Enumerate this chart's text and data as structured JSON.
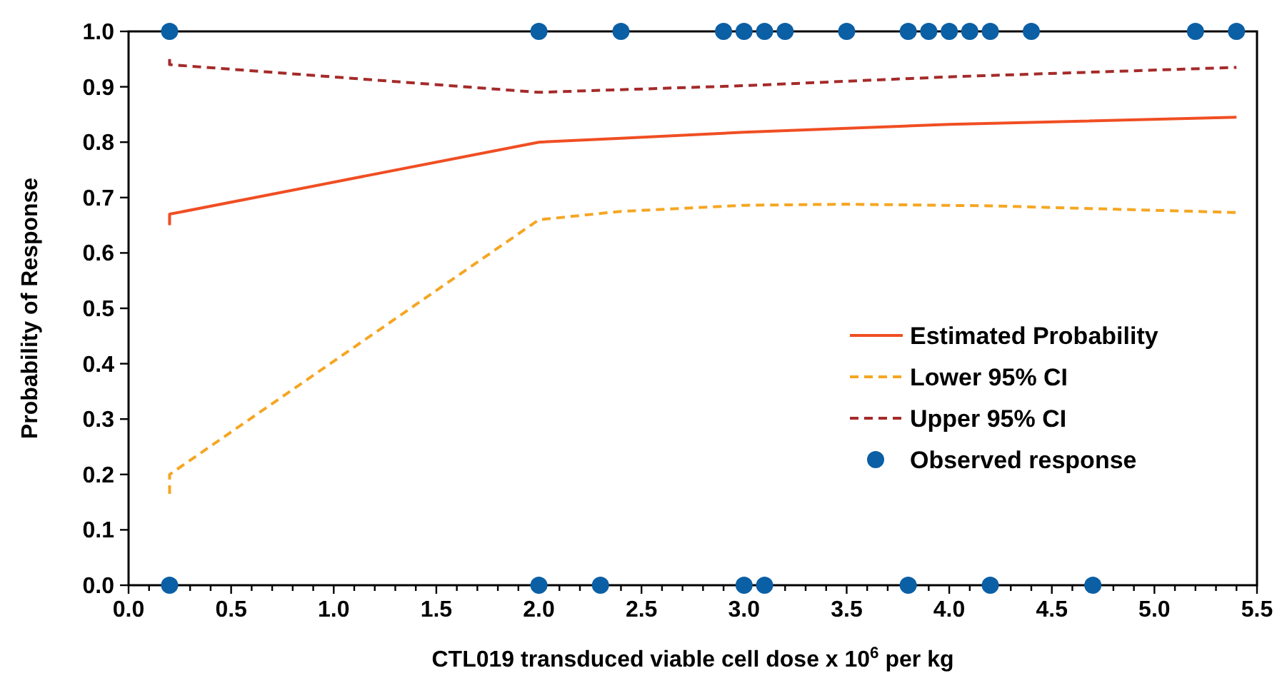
{
  "chart_data": {
    "type": "line",
    "xlabel": "CTL019 transduced viable cell dose x 10$^{6}$ per kg",
    "ylabel": "Probability of Response",
    "xlim": [
      0,
      5.5
    ],
    "ylim": [
      0,
      1
    ],
    "xticks": [
      {
        "value": 0,
        "label": "0.0"
      },
      {
        "value": 0.1,
        "label": null
      },
      {
        "value": 0.2,
        "label": null
      },
      {
        "value": 0.3,
        "label": null
      },
      {
        "value": 0.4,
        "label": null
      },
      {
        "value": 0.5,
        "label": "0.5"
      },
      {
        "value": 0.6,
        "label": null
      },
      {
        "value": 0.7,
        "label": null
      },
      {
        "value": 0.8,
        "label": null
      },
      {
        "value": 0.9,
        "label": null
      },
      {
        "value": 1,
        "label": "1.0"
      },
      {
        "value": 1.1,
        "label": null
      },
      {
        "value": 1.2,
        "label": null
      },
      {
        "value": 1.3,
        "label": null
      },
      {
        "value": 1.4,
        "label": null
      },
      1.5,
      {
        "value": 1.6,
        "label": null
      },
      {
        "value": 1.7,
        "label": null
      },
      {
        "value": 1.8,
        "label": null
      },
      {
        "value": 1.9,
        "label": null
      },
      {
        "value": 2,
        "label": "2.0"
      },
      {
        "value": 2.1,
        "label": null
      },
      {
        "value": 2.2,
        "label": null
      },
      {
        "value": 2.3,
        "label": null
      },
      {
        "value": 2.4,
        "label": null
      },
      2.5,
      {
        "value": 2.6,
        "label": null
      },
      {
        "value": 2.7,
        "label": null
      },
      {
        "value": 2.8,
        "label": null
      },
      {
        "value": 2.9,
        "label": null
      },
      {
        "value": 3,
        "label": "3.0"
      },
      {
        "value": 3.1,
        "label": null
      },
      {
        "value": 3.2,
        "label": null
      },
      {
        "value": 3.3,
        "label": null
      },
      {
        "value": 3.4,
        "label": null
      },
      3.5,
      {
        "value": 3.6,
        "label": null
      },
      {
        "value": 3.7,
        "label": null
      },
      {
        "value": 3.8,
        "label": null
      },
      {
        "value": 3.9,
        "label": null
      },
      {
        "value": 4,
        "label": "4.0"
      },
      {
        "value": 4.1,
        "label": null
      },
      {
        "value": 4.2,
        "label": null
      },
      {
        "value": 4.3,
        "label": null
      },
      {
        "value": 4.4,
        "label": null
      },
      4.5,
      {
        "value": 4.6,
        "label": null
      },
      {
        "value": 4.7,
        "label": null
      },
      {
        "value": 4.8,
        "label": null
      },
      {
        "value": 4.9,
        "label": null
      },
      {
        "value": 5,
        "label": "5.0"
      },
      {
        "value": 5.1,
        "label": null
      },
      {
        "value": 5.2,
        "label": null
      },
      {
        "value": 5.3,
        "label": null
      },
      {
        "value": 5.4,
        "label": null
      },
      5.5
    ],
    "yticks": [
      {
        "value": 0,
        "label": "0.0"
      },
      0.1,
      0.2,
      0.3,
      0.4,
      0.5,
      0.6,
      0.7,
      0.8,
      0.9,
      {
        "value": 1,
        "label": "1.0"
      }
    ],
    "grid": false,
    "legend": "right",
    "series": [
      {
        "name": "Estimated Probability",
        "color": "#f04e23",
        "line_style": "solid",
        "marker": "none",
        "x": [
          0.2,
          0.2,
          2.0,
          2.4,
          3.0,
          4.0,
          5.4
        ],
        "values": [
          0.65,
          0.67,
          0.8,
          0.807,
          0.818,
          0.832,
          0.845
        ]
      },
      {
        "name": "Lower 95% CI",
        "color": "#f5a623",
        "line_style": "dashed",
        "marker": "none",
        "x": [
          0.2,
          0.2,
          2.0,
          2.4,
          3.0,
          3.5,
          4.2,
          5.4
        ],
        "values": [
          0.165,
          0.2,
          0.66,
          0.675,
          0.686,
          0.688,
          0.685,
          0.673
        ]
      },
      {
        "name": "Upper 95% CI",
        "color": "#a52a2a",
        "line_style": "dashed",
        "marker": "none",
        "x": [
          0.2,
          0.2,
          2.0,
          3.0,
          4.0,
          5.4
        ],
        "values": [
          0.95,
          0.94,
          0.89,
          0.902,
          0.918,
          0.935
        ]
      },
      {
        "name": "Observed response",
        "type": "scatter",
        "color": "#0b5fa5",
        "marker": "circle",
        "x": [
          0.2,
          2.0,
          2.4,
          2.9,
          3.0,
          3.1,
          3.2,
          3.5,
          3.8,
          3.9,
          4.0,
          4.1,
          4.2,
          4.4,
          5.2,
          5.4,
          0.2,
          2.0,
          2.3,
          3.0,
          3.1,
          3.8,
          4.2,
          4.7
        ],
        "values": [
          1,
          1,
          1,
          1,
          1,
          1,
          1,
          1,
          1,
          1,
          1,
          1,
          1,
          1,
          1,
          1,
          0,
          0,
          0,
          0,
          0,
          0,
          0,
          0
        ]
      }
    ]
  }
}
